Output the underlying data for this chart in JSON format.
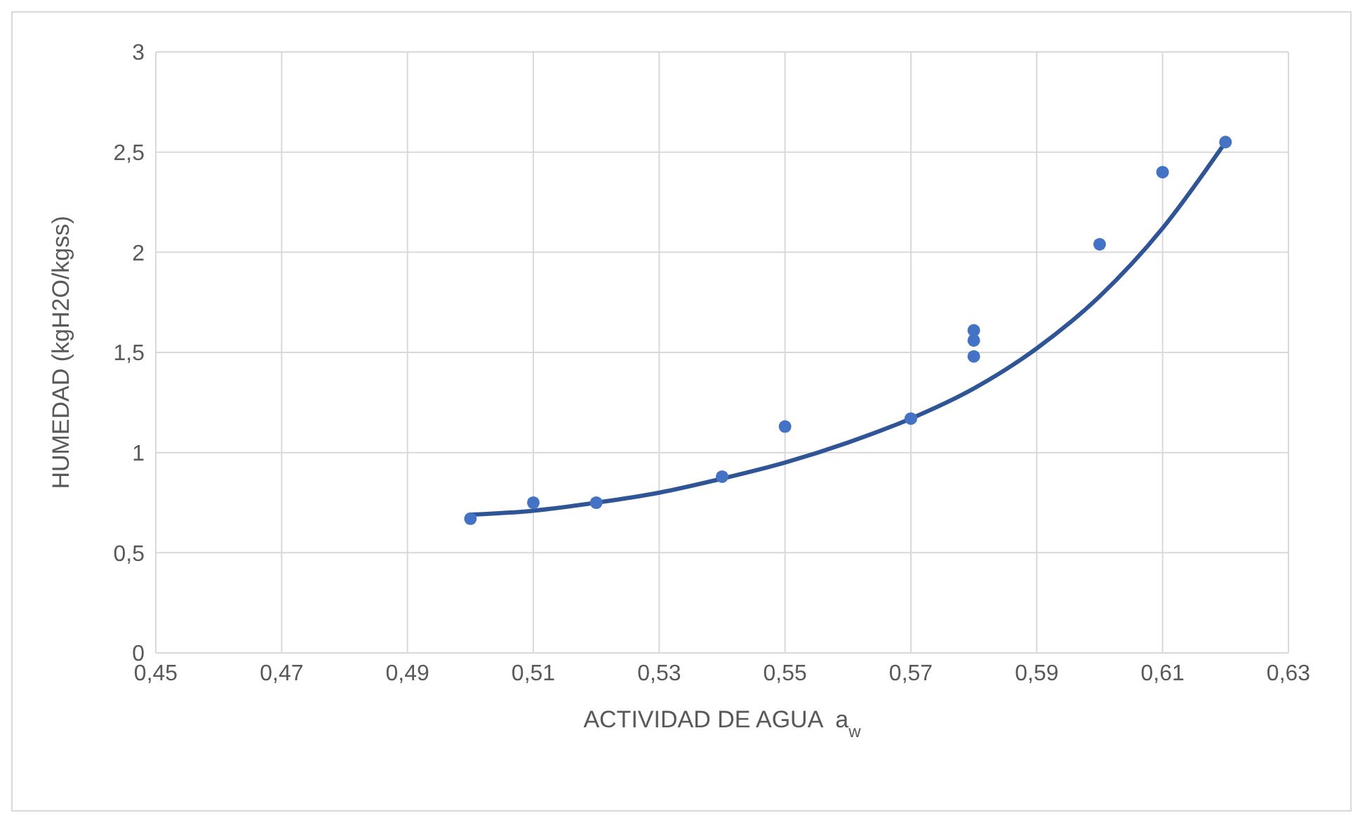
{
  "chart_data": {
    "type": "scatter",
    "xlabel": "ACTIVIDAD DE AGUA  a$_{w}$",
    "ylabel": "HUMEDAD (kgH2O/kgss)",
    "xlim": [
      0.45,
      0.63
    ],
    "xticks": [
      {
        "value": 0.45,
        "label": "0,45"
      },
      {
        "value": 0.47,
        "label": "0,47"
      },
      {
        "value": 0.49,
        "label": "0,49"
      },
      {
        "value": 0.51,
        "label": "0,51"
      },
      {
        "value": 0.53,
        "label": "0,53"
      },
      {
        "value": 0.55,
        "label": "0,55"
      },
      {
        "value": 0.57,
        "label": "0,57"
      },
      {
        "value": 0.59,
        "label": "0,59"
      },
      {
        "value": 0.61,
        "label": "0,61"
      },
      {
        "value": 0.63,
        "label": "0,63"
      }
    ],
    "ylim": [
      0,
      3
    ],
    "yticks": [
      0,
      {
        "value": 0.5,
        "label": "0,5"
      },
      1,
      {
        "value": 1.5,
        "label": "1,5"
      },
      2,
      {
        "value": 2.5,
        "label": "2,5"
      },
      3
    ],
    "grid": true,
    "legend": false,
    "series": [
      {
        "type": "scatter",
        "color": "#4472c4",
        "marker": "circle",
        "x": [
          0.5,
          0.51,
          0.52,
          0.54,
          0.55,
          0.57,
          0.58,
          0.58,
          0.58,
          0.6,
          0.61,
          0.62
        ],
        "values": [
          0.67,
          0.75,
          0.75,
          0.88,
          1.13,
          1.17,
          1.61,
          1.56,
          1.48,
          2.04,
          2.4,
          2.55
        ]
      },
      {
        "type": "line",
        "color": "#2f5597",
        "marker": "none",
        "line_style": "solid",
        "x": [
          0.5,
          0.51,
          0.52,
          0.53,
          0.54,
          0.55,
          0.56,
          0.57,
          0.58,
          0.59,
          0.6,
          0.61,
          0.62
        ],
        "values": [
          0.69,
          0.71,
          0.75,
          0.8,
          0.87,
          0.95,
          1.05,
          1.17,
          1.32,
          1.52,
          1.78,
          2.12,
          2.55
        ]
      }
    ]
  }
}
